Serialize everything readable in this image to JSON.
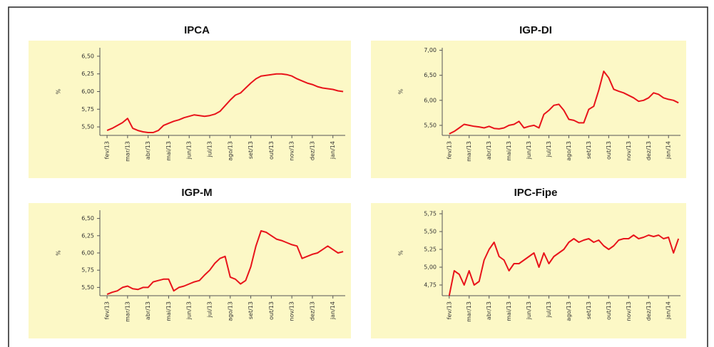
{
  "chart_data": [
    {
      "type": "line",
      "title": "IPCA",
      "ylabel": "%",
      "color": "#e8141b",
      "x": [
        0,
        0.25,
        0.5,
        0.75,
        1,
        1.25,
        1.5,
        1.75,
        2,
        2.25,
        2.5,
        2.75,
        3,
        3.25,
        3.5,
        3.75,
        4,
        4.25,
        4.5,
        4.75,
        5,
        5.25,
        5.5,
        5.75,
        6,
        6.25,
        6.5,
        6.75,
        7,
        7.25,
        7.5,
        7.75,
        8,
        8.25,
        8.5,
        8.75,
        9,
        9.25,
        9.5,
        9.75,
        10,
        10.25,
        10.5,
        10.75,
        11,
        11.25,
        11.5
      ],
      "values": [
        5.45,
        5.48,
        5.52,
        5.56,
        5.62,
        5.48,
        5.45,
        5.43,
        5.42,
        5.42,
        5.45,
        5.52,
        5.55,
        5.58,
        5.6,
        5.63,
        5.65,
        5.67,
        5.66,
        5.65,
        5.66,
        5.68,
        5.72,
        5.8,
        5.88,
        5.95,
        5.98,
        6.05,
        6.12,
        6.18,
        6.22,
        6.23,
        6.24,
        6.25,
        6.25,
        6.24,
        6.22,
        6.18,
        6.15,
        6.12,
        6.1,
        6.07,
        6.05,
        6.04,
        6.03,
        6.01,
        6.0
      ],
      "xlim": [
        -0.35,
        11.6
      ],
      "xticks": [
        {
          "value": 0,
          "label": "fev/13"
        },
        {
          "value": 1,
          "label": "mar/13"
        },
        {
          "value": 2,
          "label": "abr/13"
        },
        {
          "value": 3,
          "label": "mai/13"
        },
        {
          "value": 4,
          "label": "jun/13"
        },
        {
          "value": 5,
          "label": "jul/13"
        },
        {
          "value": 6,
          "label": "ago/13"
        },
        {
          "value": 7,
          "label": "set/13"
        },
        {
          "value": 8,
          "label": "out/13"
        },
        {
          "value": 9,
          "label": "nov/13"
        },
        {
          "value": 10,
          "label": "dez/13"
        },
        {
          "value": 11,
          "label": "jan/14"
        }
      ],
      "ylim": [
        5.38,
        6.62
      ],
      "yticks": [
        {
          "value": 5.5,
          "label": "5,50"
        },
        {
          "value": 5.75,
          "label": "5,75"
        },
        {
          "value": 6.0,
          "label": "6,00"
        },
        {
          "value": 6.25,
          "label": "6,25"
        },
        {
          "value": 6.5,
          "label": "6,50"
        }
      ]
    },
    {
      "type": "line",
      "title": "IGP-DI",
      "ylabel": "%",
      "color": "#e8141b",
      "x": [
        0,
        0.25,
        0.5,
        0.75,
        1,
        1.25,
        1.5,
        1.75,
        2,
        2.25,
        2.5,
        2.75,
        3,
        3.25,
        3.5,
        3.75,
        4,
        4.25,
        4.5,
        4.75,
        5,
        5.25,
        5.5,
        5.75,
        6,
        6.25,
        6.5,
        6.75,
        7,
        7.25,
        7.5,
        7.75,
        8,
        8.25,
        8.5,
        8.75,
        9,
        9.25,
        9.5,
        9.75,
        10,
        10.25,
        10.5,
        10.75,
        11,
        11.25,
        11.5
      ],
      "values": [
        5.33,
        5.38,
        5.45,
        5.52,
        5.5,
        5.48,
        5.47,
        5.45,
        5.48,
        5.44,
        5.43,
        5.45,
        5.5,
        5.52,
        5.58,
        5.45,
        5.48,
        5.5,
        5.45,
        5.72,
        5.8,
        5.9,
        5.92,
        5.8,
        5.62,
        5.6,
        5.55,
        5.55,
        5.82,
        5.88,
        6.2,
        6.58,
        6.45,
        6.22,
        6.18,
        6.15,
        6.1,
        6.05,
        5.98,
        6.0,
        6.05,
        6.15,
        6.12,
        6.05,
        6.02,
        6.0,
        5.95
      ],
      "xlim": [
        -0.35,
        11.6
      ],
      "xticks": [
        {
          "value": 0,
          "label": "fev/13"
        },
        {
          "value": 1,
          "label": "mar/13"
        },
        {
          "value": 2,
          "label": "abr/13"
        },
        {
          "value": 3,
          "label": "mai/13"
        },
        {
          "value": 4,
          "label": "jun/13"
        },
        {
          "value": 5,
          "label": "jul/13"
        },
        {
          "value": 6,
          "label": "ago/13"
        },
        {
          "value": 7,
          "label": "set/13"
        },
        {
          "value": 8,
          "label": "out/13"
        },
        {
          "value": 9,
          "label": "nov/13"
        },
        {
          "value": 10,
          "label": "dez/13"
        },
        {
          "value": 11,
          "label": "jan/14"
        }
      ],
      "ylim": [
        5.3,
        7.05
      ],
      "yticks": [
        {
          "value": 5.5,
          "label": "5,50"
        },
        {
          "value": 6.0,
          "label": "6,00"
        },
        {
          "value": 6.5,
          "label": "6,50"
        },
        {
          "value": 7.0,
          "label": "7,00"
        }
      ]
    },
    {
      "type": "line",
      "title": "IGP-M",
      "ylabel": "%",
      "color": "#e8141b",
      "x": [
        0,
        0.25,
        0.5,
        0.75,
        1,
        1.25,
        1.5,
        1.75,
        2,
        2.25,
        2.5,
        2.75,
        3,
        3.25,
        3.5,
        3.75,
        4,
        4.25,
        4.5,
        4.75,
        5,
        5.25,
        5.5,
        5.75,
        6,
        6.25,
        6.5,
        6.75,
        7,
        7.25,
        7.5,
        7.75,
        8,
        8.25,
        8.5,
        8.75,
        9,
        9.25,
        9.5,
        9.75,
        10,
        10.25,
        10.5,
        10.75,
        11,
        11.25,
        11.5
      ],
      "values": [
        5.4,
        5.43,
        5.45,
        5.5,
        5.52,
        5.48,
        5.47,
        5.5,
        5.5,
        5.58,
        5.6,
        5.62,
        5.62,
        5.45,
        5.5,
        5.52,
        5.55,
        5.58,
        5.6,
        5.68,
        5.75,
        5.85,
        5.92,
        5.95,
        5.65,
        5.62,
        5.55,
        5.6,
        5.8,
        6.1,
        6.32,
        6.3,
        6.25,
        6.2,
        6.18,
        6.15,
        6.12,
        6.1,
        5.92,
        5.95,
        5.98,
        6.0,
        6.05,
        6.1,
        6.05,
        6.0,
        6.02
      ],
      "xlim": [
        -0.35,
        11.6
      ],
      "xticks": [
        {
          "value": 0,
          "label": "fev/13"
        },
        {
          "value": 1,
          "label": "mar/13"
        },
        {
          "value": 2,
          "label": "abr/13"
        },
        {
          "value": 3,
          "label": "mai/13"
        },
        {
          "value": 4,
          "label": "jun/13"
        },
        {
          "value": 5,
          "label": "jul/13"
        },
        {
          "value": 6,
          "label": "ago/13"
        },
        {
          "value": 7,
          "label": "set/13"
        },
        {
          "value": 8,
          "label": "out/13"
        },
        {
          "value": 9,
          "label": "nov/13"
        },
        {
          "value": 10,
          "label": "dez/13"
        },
        {
          "value": 11,
          "label": "jan/14"
        }
      ],
      "ylim": [
        5.38,
        6.62
      ],
      "yticks": [
        {
          "value": 5.5,
          "label": "5,50"
        },
        {
          "value": 5.75,
          "label": "5,75"
        },
        {
          "value": 6.0,
          "label": "6,00"
        },
        {
          "value": 6.25,
          "label": "6,25"
        },
        {
          "value": 6.5,
          "label": "6,50"
        }
      ]
    },
    {
      "type": "line",
      "title": "IPC-Fipe",
      "ylabel": "%",
      "color": "#e8141b",
      "x": [
        0,
        0.25,
        0.5,
        0.75,
        1,
        1.25,
        1.5,
        1.75,
        2,
        2.25,
        2.5,
        2.75,
        3,
        3.25,
        3.5,
        3.75,
        4,
        4.25,
        4.5,
        4.75,
        5,
        5.25,
        5.5,
        5.75,
        6,
        6.25,
        6.5,
        6.75,
        7,
        7.25,
        7.5,
        7.75,
        8,
        8.25,
        8.5,
        8.75,
        9,
        9.25,
        9.5,
        9.75,
        10,
        10.25,
        10.5,
        10.75,
        11,
        11.25,
        11.5
      ],
      "values": [
        4.6,
        4.95,
        4.9,
        4.75,
        4.95,
        4.75,
        4.8,
        5.1,
        5.25,
        5.35,
        5.15,
        5.1,
        4.95,
        5.05,
        5.05,
        5.1,
        5.15,
        5.2,
        5.0,
        5.2,
        5.05,
        5.15,
        5.2,
        5.25,
        5.35,
        5.4,
        5.35,
        5.38,
        5.4,
        5.35,
        5.38,
        5.3,
        5.25,
        5.3,
        5.38,
        5.4,
        5.4,
        5.45,
        5.4,
        5.42,
        5.45,
        5.43,
        5.45,
        5.4,
        5.42,
        5.2,
        5.4
      ],
      "xlim": [
        -0.35,
        11.6
      ],
      "xticks": [
        {
          "value": 0,
          "label": "fev/13"
        },
        {
          "value": 1,
          "label": "mar/13"
        },
        {
          "value": 2,
          "label": "abr/13"
        },
        {
          "value": 3,
          "label": "mai/13"
        },
        {
          "value": 4,
          "label": "jun/13"
        },
        {
          "value": 5,
          "label": "jul/13"
        },
        {
          "value": 6,
          "label": "ago/13"
        },
        {
          "value": 7,
          "label": "set/13"
        },
        {
          "value": 8,
          "label": "out/13"
        },
        {
          "value": 9,
          "label": "nov/13"
        },
        {
          "value": 10,
          "label": "dez/13"
        },
        {
          "value": 11,
          "label": "jan/14"
        }
      ],
      "ylim": [
        4.6,
        5.8
      ],
      "yticks": [
        {
          "value": 4.75,
          "label": "4,75"
        },
        {
          "value": 5.0,
          "label": "5,00"
        },
        {
          "value": 5.25,
          "label": "5,25"
        },
        {
          "value": 5.5,
          "label": "5,50"
        },
        {
          "value": 5.75,
          "label": "5,75"
        }
      ]
    }
  ]
}
